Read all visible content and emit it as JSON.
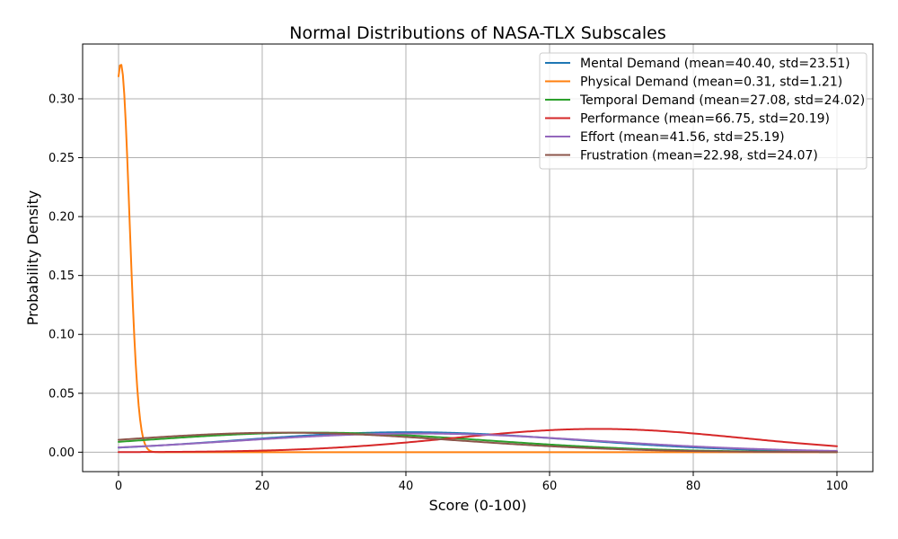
{
  "chart_data": {
    "type": "line",
    "title": "Normal Distributions of NASA-TLX Subscales",
    "xlabel": "Score (0-100)",
    "ylabel": "Probability Density",
    "xlim": [
      -5,
      105
    ],
    "ylim": [
      -0.0165,
      0.3465
    ],
    "x_range": [
      0,
      100
    ],
    "xticks": [
      "0",
      "20",
      "40",
      "60",
      "80",
      "100"
    ],
    "yticks": [
      "0.00",
      "0.05",
      "0.10",
      "0.15",
      "0.20",
      "0.25",
      "0.30"
    ],
    "grid": true,
    "legend_position": "top-right",
    "series": [
      {
        "name": "Mental Demand (mean=40.40, std=23.51)",
        "mean": 40.4,
        "std": 23.51,
        "color": "#1f77b4"
      },
      {
        "name": "Physical Demand (mean=0.31, std=1.21)",
        "mean": 0.31,
        "std": 1.21,
        "color": "#ff7f0e"
      },
      {
        "name": "Temporal Demand (mean=27.08, std=24.02)",
        "mean": 27.08,
        "std": 24.02,
        "color": "#2ca02c"
      },
      {
        "name": "Performance (mean=66.75, std=20.19)",
        "mean": 66.75,
        "std": 20.19,
        "color": "#d62728"
      },
      {
        "name": "Effort (mean=41.56, std=25.19)",
        "mean": 41.56,
        "std": 25.19,
        "color": "#9467bd"
      },
      {
        "name": "Frustration (mean=22.98, std=24.07)",
        "mean": 22.98,
        "std": 24.07,
        "color": "#8c564b"
      }
    ]
  }
}
